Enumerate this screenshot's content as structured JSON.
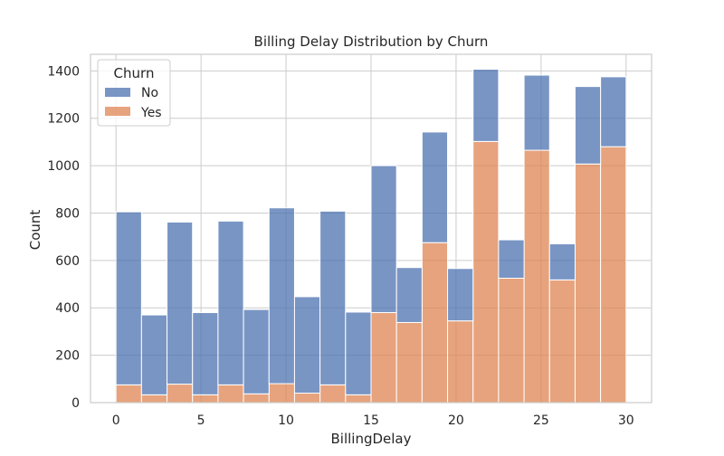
{
  "chart_data": {
    "type": "bar",
    "stacked": true,
    "title": "Billing Delay Distribution by Churn",
    "xlabel": "BillingDelay",
    "ylabel": "Count",
    "xlim": [
      -1.5,
      31.5
    ],
    "ylim": [
      0,
      1470
    ],
    "xticks": [
      0,
      5,
      10,
      15,
      20,
      25,
      30
    ],
    "yticks": [
      0,
      200,
      400,
      600,
      800,
      1000,
      1200,
      1400
    ],
    "grid": true,
    "bin_edges": [
      0,
      1.5,
      3,
      4.5,
      6,
      7.5,
      9,
      10.5,
      12,
      13.5,
      15,
      16.5,
      18,
      19.5,
      21,
      22.5,
      24,
      25.5,
      27,
      28.5,
      30
    ],
    "series": [
      {
        "name": "Yes",
        "color": "#dd8452",
        "values": [
          75,
          33,
          78,
          33,
          75,
          37,
          80,
          40,
          75,
          33,
          380,
          338,
          675,
          345,
          1102,
          525,
          1065,
          518,
          1007,
          1080
        ]
      },
      {
        "name": "No",
        "color": "#4c72b0",
        "values": [
          730,
          337,
          684,
          347,
          691,
          356,
          742,
          407,
          733,
          349,
          620,
          232,
          467,
          221,
          305,
          162,
          317,
          152,
          327,
          295
        ]
      }
    ],
    "legend": {
      "title": "Churn",
      "position": "top-left",
      "entries": [
        {
          "label": "No",
          "color": "#4c72b0"
        },
        {
          "label": "Yes",
          "color": "#dd8452"
        }
      ]
    }
  }
}
